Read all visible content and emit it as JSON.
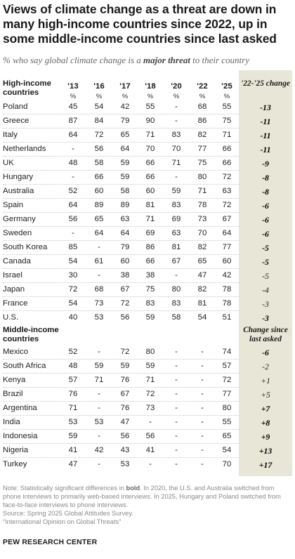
{
  "title": "Views of climate change as a threat are down in many high-income countries since 2022, up in some middle-income countries since last asked",
  "subtitle": {
    "pre": "% who say global climate change is a ",
    "emph": "major threat",
    "post": " to their country"
  },
  "chart_data": {
    "type": "table",
    "columns": [
      "'13",
      "'16",
      "'17",
      "'18",
      "'20",
      "'22",
      "'25"
    ],
    "unit_label": "%",
    "sections": [
      {
        "label": "High-income countries",
        "change_header": "'22-'25 change",
        "rows": [
          {
            "country": "Poland",
            "values": [
              "45",
              "54",
              "42",
              "55",
              "-",
              "68",
              "55"
            ],
            "change": "-13",
            "significant": true
          },
          {
            "country": "Greece",
            "values": [
              "87",
              "84",
              "79",
              "90",
              "-",
              "86",
              "75"
            ],
            "change": "-11",
            "significant": true
          },
          {
            "country": "Italy",
            "values": [
              "64",
              "72",
              "65",
              "71",
              "83",
              "82",
              "71"
            ],
            "change": "-11",
            "significant": true
          },
          {
            "country": "Netherlands",
            "values": [
              "-",
              "56",
              "64",
              "70",
              "70",
              "77",
              "66"
            ],
            "change": "-11",
            "significant": true
          },
          {
            "country": "UK",
            "values": [
              "48",
              "58",
              "59",
              "66",
              "71",
              "75",
              "66"
            ],
            "change": "-9",
            "significant": true
          },
          {
            "country": "Hungary",
            "values": [
              "-",
              "66",
              "59",
              "66",
              "-",
              "80",
              "72"
            ],
            "change": "-8",
            "significant": true
          },
          {
            "country": "Australia",
            "values": [
              "52",
              "60",
              "58",
              "60",
              "59",
              "71",
              "63"
            ],
            "change": "-8",
            "significant": true
          },
          {
            "country": "Spain",
            "values": [
              "64",
              "89",
              "89",
              "81",
              "83",
              "78",
              "72"
            ],
            "change": "-6",
            "significant": true
          },
          {
            "country": "Germany",
            "values": [
              "56",
              "65",
              "63",
              "71",
              "69",
              "73",
              "67"
            ],
            "change": "-6",
            "significant": true
          },
          {
            "country": "Sweden",
            "values": [
              "-",
              "64",
              "64",
              "69",
              "63",
              "70",
              "64"
            ],
            "change": "-6",
            "significant": true
          },
          {
            "country": "South Korea",
            "values": [
              "85",
              "-",
              "79",
              "86",
              "81",
              "82",
              "77"
            ],
            "change": "-5",
            "significant": true
          },
          {
            "country": "Canada",
            "values": [
              "54",
              "61",
              "60",
              "66",
              "67",
              "65",
              "60"
            ],
            "change": "-5",
            "significant": true
          },
          {
            "country": "Israel",
            "values": [
              "30",
              "-",
              "38",
              "38",
              "-",
              "47",
              "42"
            ],
            "change": "-5",
            "significant": false
          },
          {
            "country": "Japan",
            "values": [
              "72",
              "68",
              "67",
              "75",
              "80",
              "82",
              "78"
            ],
            "change": "-4",
            "significant": false
          },
          {
            "country": "France",
            "values": [
              "54",
              "73",
              "72",
              "83",
              "83",
              "81",
              "78"
            ],
            "change": "-3",
            "significant": false
          },
          {
            "country": "U.S.",
            "values": [
              "40",
              "53",
              "56",
              "59",
              "58",
              "54",
              "51"
            ],
            "change": "-3",
            "significant": true
          }
        ]
      },
      {
        "label": "Middle-income countries",
        "change_header": "Change since last asked",
        "rows": [
          {
            "country": "Mexico",
            "values": [
              "52",
              "-",
              "72",
              "80",
              "-",
              "-",
              "74"
            ],
            "change": "-6",
            "significant": true
          },
          {
            "country": "South Africa",
            "values": [
              "48",
              "59",
              "59",
              "59",
              "-",
              "-",
              "57"
            ],
            "change": "-2",
            "significant": false
          },
          {
            "country": "Kenya",
            "values": [
              "57",
              "71",
              "76",
              "71",
              "-",
              "-",
              "72"
            ],
            "change": "+1",
            "significant": false
          },
          {
            "country": "Brazil",
            "values": [
              "76",
              "-",
              "67",
              "72",
              "-",
              "-",
              "77"
            ],
            "change": "+5",
            "significant": false
          },
          {
            "country": "Argentina",
            "values": [
              "71",
              "-",
              "76",
              "73",
              "-",
              "-",
              "80"
            ],
            "change": "+7",
            "significant": true
          },
          {
            "country": "India",
            "values": [
              "53",
              "53",
              "47",
              "-",
              "-",
              "-",
              "55"
            ],
            "change": "+8",
            "significant": true
          },
          {
            "country": "Indonesia",
            "values": [
              "59",
              "-",
              "56",
              "56",
              "-",
              "-",
              "65"
            ],
            "change": "+9",
            "significant": true
          },
          {
            "country": "Nigeria",
            "values": [
              "41",
              "42",
              "43",
              "41",
              "-",
              "-",
              "54"
            ],
            "change": "+13",
            "significant": true
          },
          {
            "country": "Turkey",
            "values": [
              "47",
              "-",
              "53",
              "-",
              "-",
              "-",
              "70"
            ],
            "change": "+17",
            "significant": true
          }
        ]
      }
    ]
  },
  "notes": {
    "note_pre": "Note: Statistically significant differences in ",
    "note_bold": "bold",
    "note_post": ". In 2020, the U.S. and Australia switched from phone interviews to primarily web-based interviews. In 2025, Hungary and Poland switched from face-to-face interviews to phone interviews.",
    "source": "Source: Spring 2025 Global Attitudes Survey.",
    "report": "“International Opinion on Global Threats”"
  },
  "footer": "PEW RESEARCH CENTER"
}
